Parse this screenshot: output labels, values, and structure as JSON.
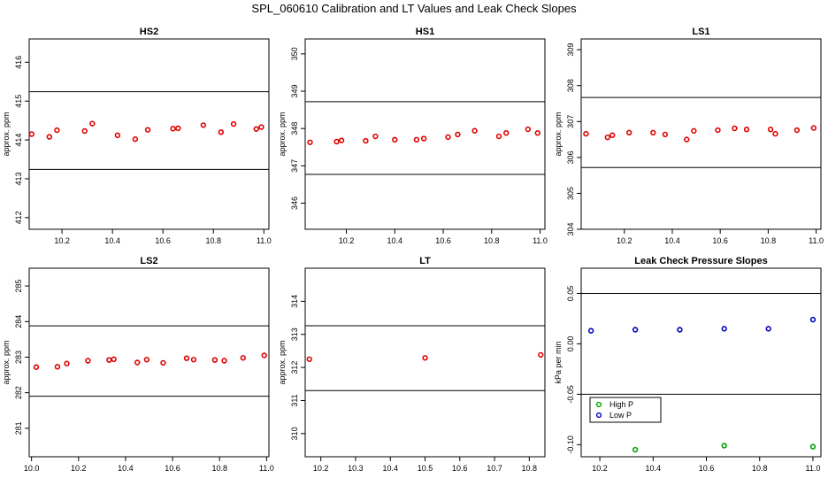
{
  "figure_title": "SPL_060610  Calibration and LT Values and Leak Check Slopes",
  "chart_data": [
    {
      "type": "scatter",
      "title": "HS2",
      "ylabel": "approx. ppm",
      "xlabel": "",
      "xlim": [
        10.07,
        11.02
      ],
      "ylim": [
        411.7,
        416.6
      ],
      "xticks": [
        "10.2",
        "10.4",
        "10.6",
        "10.8",
        "11.0"
      ],
      "yticks": [
        "412",
        "413",
        "414",
        "415",
        "416"
      ],
      "hlines": [
        415.24,
        413.24
      ],
      "marker_color": "#e00000",
      "series": [
        {
          "name": "HS2",
          "x": [
            10.08,
            10.15,
            10.18,
            10.29,
            10.32,
            10.42,
            10.49,
            10.54,
            10.64,
            10.66,
            10.76,
            10.83,
            10.88,
            10.97,
            10.99
          ],
          "y": [
            414.15,
            414.08,
            414.25,
            414.23,
            414.42,
            414.12,
            414.02,
            414.26,
            414.29,
            414.3,
            414.38,
            414.2,
            414.41,
            414.28,
            414.33
          ]
        }
      ]
    },
    {
      "type": "scatter",
      "title": "HS1",
      "ylabel": "approx. ppm",
      "xlabel": "",
      "xlim": [
        10.03,
        11.02
      ],
      "ylim": [
        345.3,
        350.4
      ],
      "xticks": [
        "10.2",
        "10.4",
        "10.6",
        "10.8",
        "11.0"
      ],
      "yticks": [
        "346",
        "347",
        "348",
        "349",
        "350"
      ],
      "hlines": [
        348.72,
        346.77
      ],
      "marker_color": "#e00000",
      "series": [
        {
          "name": "HS1",
          "x": [
            10.05,
            10.16,
            10.18,
            10.28,
            10.32,
            10.4,
            10.49,
            10.52,
            10.62,
            10.66,
            10.73,
            10.83,
            10.86,
            10.95,
            10.99
          ],
          "y": [
            347.63,
            347.65,
            347.68,
            347.67,
            347.79,
            347.7,
            347.7,
            347.73,
            347.77,
            347.84,
            347.94,
            347.79,
            347.88,
            347.98,
            347.88
          ]
        }
      ]
    },
    {
      "type": "scatter",
      "title": "LS1",
      "ylabel": "approx. ppm",
      "xlabel": "",
      "xlim": [
        10.02,
        11.02
      ],
      "ylim": [
        304.0,
        309.3
      ],
      "xticks": [
        "10.2",
        "10.4",
        "10.6",
        "10.8",
        "11.0"
      ],
      "yticks": [
        "304",
        "305",
        "306",
        "307",
        "308",
        "309"
      ],
      "hlines": [
        307.67,
        305.72
      ],
      "marker_color": "#e00000",
      "series": [
        {
          "name": "LS1",
          "x": [
            10.04,
            10.13,
            10.15,
            10.22,
            10.32,
            10.37,
            10.46,
            10.49,
            10.59,
            10.66,
            10.71,
            10.81,
            10.83,
            10.92,
            10.99
          ],
          "y": [
            306.66,
            306.56,
            306.62,
            306.69,
            306.69,
            306.64,
            306.5,
            306.74,
            306.76,
            306.81,
            306.78,
            306.78,
            306.66,
            306.76,
            306.82
          ]
        }
      ]
    },
    {
      "type": "scatter",
      "title": "LS2",
      "ylabel": "approx. ppm",
      "xlabel": "",
      "xlim": [
        9.99,
        11.01
      ],
      "ylim": [
        280.2,
        285.5
      ],
      "xticks": [
        "10.0",
        "10.2",
        "10.4",
        "10.6",
        "10.8",
        "11.0"
      ],
      "yticks": [
        "281",
        "282",
        "283",
        "284",
        "285"
      ],
      "hlines": [
        283.88,
        281.9
      ],
      "marker_color": "#e00000",
      "series": [
        {
          "name": "LS2",
          "x": [
            10.02,
            10.11,
            10.15,
            10.24,
            10.33,
            10.35,
            10.45,
            10.49,
            10.56,
            10.66,
            10.69,
            10.78,
            10.82,
            10.9,
            10.99
          ],
          "y": [
            282.72,
            282.73,
            282.82,
            282.9,
            282.92,
            282.94,
            282.85,
            282.93,
            282.84,
            282.97,
            282.93,
            282.92,
            282.9,
            282.98,
            283.05
          ]
        }
      ]
    },
    {
      "type": "scatter",
      "title": "LT",
      "ylabel": "approx. ppm",
      "xlabel": "",
      "xlim": [
        10.155,
        10.845
      ],
      "ylim": [
        309.3,
        315.0
      ],
      "xticks": [
        "10.2",
        "10.3",
        "10.4",
        "10.5",
        "10.6",
        "10.7",
        "10.8"
      ],
      "yticks": [
        "310",
        "311",
        "312",
        "313",
        "314"
      ],
      "hlines": [
        313.26,
        311.3
      ],
      "marker_color": "#e00000",
      "series": [
        {
          "name": "LT",
          "x": [
            10.167,
            10.5,
            10.833
          ],
          "y": [
            312.25,
            312.29,
            312.38
          ]
        }
      ]
    },
    {
      "type": "scatter",
      "title": "Leak Check Pressure Slopes",
      "ylabel": "kPa per min",
      "xlabel": "",
      "xlim": [
        10.13,
        11.03
      ],
      "ylim": [
        -0.112,
        0.075
      ],
      "xticks": [
        "10.2",
        "10.4",
        "10.6",
        "10.8",
        "11.0"
      ],
      "yticks": [
        "0.05",
        "0.00",
        "-0.05",
        "-0.10"
      ],
      "hlines": [
        0.05,
        -0.05
      ],
      "legend": {
        "position": "bottom-left",
        "entries": [
          "High P",
          "Low P"
        ]
      },
      "series": [
        {
          "name": "High P",
          "color": "#00a000",
          "x": [
            10.333,
            10.667,
            11.0
          ],
          "y": [
            -0.105,
            -0.101,
            -0.102
          ]
        },
        {
          "name": "Low P",
          "color": "#0000c0",
          "x": [
            10.167,
            10.333,
            10.5,
            10.667,
            10.833,
            11.0
          ],
          "y": [
            0.013,
            0.014,
            0.014,
            0.015,
            0.015,
            0.024
          ]
        }
      ]
    }
  ]
}
